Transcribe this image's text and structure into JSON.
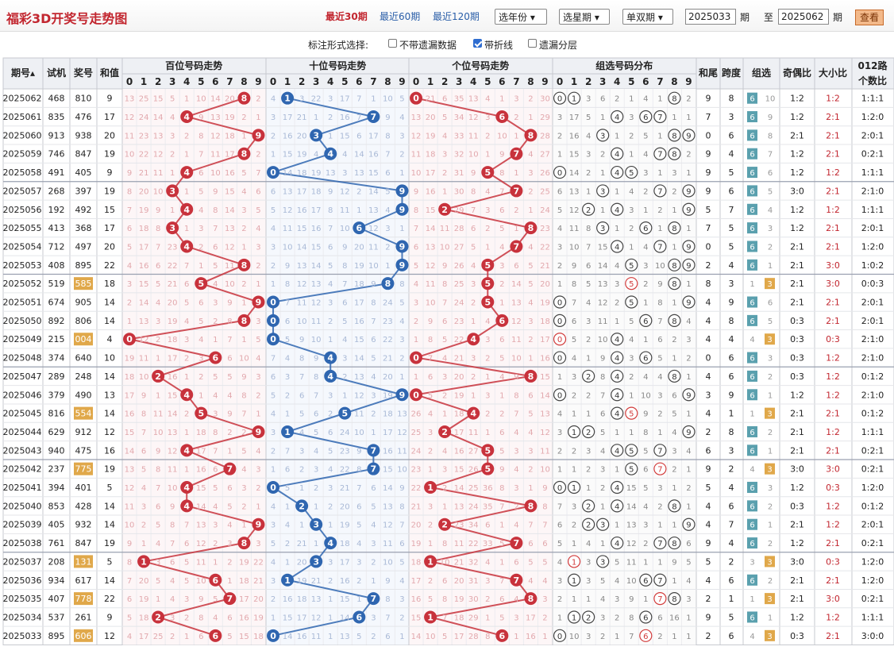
{
  "header": {
    "title": "福彩3D开奖号走势图",
    "recent30": "最近30期",
    "recent60": "最近60期",
    "recent120": "最近120期",
    "year_select": "选年份",
    "star_select": "选星期",
    "parity_select": "单双期",
    "from_value": "2025033",
    "period_label": "期",
    "to_label": "至",
    "to_value": "2025062",
    "period_label2": "期",
    "query": "查看"
  },
  "options": {
    "label": "标注形式选择:",
    "opt1": "不带遗漏数据",
    "opt2": "带折线",
    "opt3": "遗漏分层"
  },
  "columns": {
    "issue": "期号",
    "test": "试机",
    "award": "奖号",
    "sum": "和值",
    "hundreds": "百位号码走势",
    "tens": "十位号码走势",
    "units": "个位号码走势",
    "group": "组选号码分布",
    "sumtail": "和尾",
    "span": "跨度",
    "grouptype": "组选",
    "oddeven": "奇偶比",
    "bigsmall": "大小比",
    "road012a": "012路",
    "road012b": "个数比"
  },
  "colors": {
    "hundreds": "#c8323c",
    "tens": "#2f66b0",
    "units": "#c8323c",
    "accent": "#c2262f",
    "g6": "#5aa0ae",
    "g3": "#e0a84a"
  },
  "rows": [
    {
      "i": "2025062",
      "t": "468",
      "a": "810",
      "s": "9",
      "tail": "9",
      "span": "8",
      "g": "6",
      "gm": "10",
      "oe": "1:2",
      "bs": "1:2",
      "r": "1:1:1",
      "hm": "13 25 15 5 1 10 14 20 8 2",
      "tm": "4 1 3 22 3 17 7 1 10 5",
      "um": "0 21 6 35 13 4 1 3 2 30",
      "gp": "0 1 3 6 2 1 4 1 8 2"
    },
    {
      "i": "2025061",
      "t": "835",
      "a": "476",
      "s": "17",
      "tail": "7",
      "span": "3",
      "g": "6",
      "gm": "9",
      "oe": "1:2",
      "bs": "2:1",
      "r": "1:2:0",
      "hm": "12 24 14 4 4 9 13 19 2 1",
      "tm": "3 17 21 1 2 16 7 1 9 4",
      "um": "13 20 5 34 12 3 6 2 1 29",
      "gp": "3 17 5 1 4 3 6 7 1 1"
    },
    {
      "i": "2025060",
      "t": "913",
      "a": "938",
      "s": "20",
      "tail": "0",
      "span": "6",
      "g": "6",
      "gm": "8",
      "oe": "2:1",
      "bs": "2:1",
      "r": "2:0:1",
      "hm": "11 23 13 3 2 8 12 18 1 9",
      "tm": "2 16 20 3 1 15 6 17 8 3",
      "um": "12 19 4 33 11 2 10 1 8 28",
      "gp": "2 16 4 3 1 2 5 1 8 9"
    },
    {
      "i": "2025059",
      "t": "746",
      "a": "847",
      "s": "19",
      "tail": "9",
      "span": "4",
      "g": "6",
      "gm": "7",
      "oe": "1:2",
      "bs": "2:1",
      "r": "0:2:1",
      "hm": "10 22 12 2 1 7 11 17 8 2",
      "tm": "1 15 19 4 14 4 14 16 7 2",
      "um": "11 18 3 32 10 1 9 7 4 27",
      "gp": "1 15 3 2 4 1 4 7 8 2"
    },
    {
      "i": "2025058",
      "t": "491",
      "a": "405",
      "s": "9",
      "tail": "9",
      "span": "5",
      "g": "6",
      "gm": "6",
      "oe": "1:2",
      "bs": "1:2",
      "r": "1:1:1",
      "hm": "9 21 11 1 4 6 10 16 5 7",
      "tm": "0 14 18 19 13 3 13 15 6 1",
      "um": "10 17 2 31 9 5 8 1 3 26",
      "gp": "0 14 2 1 4 5 3 1 3 1"
    },
    {
      "i": "2025057",
      "t": "268",
      "a": "397",
      "s": "19",
      "tail": "9",
      "span": "6",
      "g": "6",
      "gm": "5",
      "oe": "3:0",
      "bs": "2:1",
      "r": "2:1:0",
      "hm": "8 20 10 3 1 5 9 15 4 6",
      "tm": "6 13 17 18 9 12 2 14 5 9",
      "um": "9 16 1 30 8 4 7 7 2 25",
      "gp": "6 13 1 3 1 4 2 7 2 9"
    },
    {
      "i": "2025056",
      "t": "192",
      "a": "492",
      "s": "15",
      "tail": "5",
      "span": "7",
      "g": "6",
      "gm": "4",
      "oe": "1:2",
      "bs": "1:2",
      "r": "1:1:1",
      "hm": "7 19 9 1 4 4 8 14 3 5",
      "tm": "5 12 16 17 8 11 1 13 4 9",
      "um": "8 15 2 29 7 3 6 2 1 24",
      "gp": "5 12 2 1 4 3 1 2 1 9"
    },
    {
      "i": "2025055",
      "t": "413",
      "a": "368",
      "s": "17",
      "tail": "7",
      "span": "5",
      "g": "6",
      "gm": "3",
      "oe": "1:2",
      "bs": "2:1",
      "r": "2:0:1",
      "hm": "6 18 8 3 1 3 7 13 2 4",
      "tm": "4 11 15 16 7 10 6 12 3 1",
      "um": "7 14 11 28 6 2 5 1 8 23",
      "gp": "4 11 8 3 1 2 6 1 8 1"
    },
    {
      "i": "2025054",
      "t": "712",
      "a": "497",
      "s": "20",
      "tail": "0",
      "span": "5",
      "g": "6",
      "gm": "2",
      "oe": "2:1",
      "bs": "2:1",
      "r": "1:2:0",
      "hm": "5 17 7 23 4 2 6 12 1 3",
      "tm": "3 10 14 15 6 9 20 11 2 9",
      "um": "6 13 10 27 5 1 4 7 4 22",
      "gp": "3 10 7 15 4 1 4 7 1 9"
    },
    {
      "i": "2025053",
      "t": "408",
      "a": "895",
      "s": "22",
      "tail": "2",
      "span": "4",
      "g": "6",
      "gm": "1",
      "oe": "2:1",
      "bs": "3:0",
      "r": "1:0:2",
      "hm": "4 16 6 22 7 1 5 11 8 2",
      "tm": "2 9 13 14 5 8 19 10 1 9",
      "um": "5 12 9 26 4 5 3 6 5 21",
      "gp": "2 9 6 14 4 5 3 10 8 9"
    },
    {
      "i": "2025052",
      "t": "519",
      "a": "585",
      "s": "18",
      "tail": "8",
      "span": "3",
      "g": "3",
      "gm": "1",
      "oe": "2:1",
      "bs": "3:0",
      "r": "0:0:3",
      "hm": "3 15 5 21 6 5 4 10 2 1",
      "tm": "1 8 12 13 4 7 18 9 8 8",
      "um": "4 11 8 25 3 5 2 14 5 20",
      "gp": "1 8 5 13 3 5 2 9 8 1"
    },
    {
      "i": "2025051",
      "t": "674",
      "a": "905",
      "s": "14",
      "tail": "4",
      "span": "9",
      "g": "6",
      "gm": "6",
      "oe": "2:1",
      "bs": "2:1",
      "r": "2:0:1",
      "hm": "2 14 4 20 5 6 3 9 1 9",
      "tm": "0 7 11 12 3 6 17 8 24 5",
      "um": "3 10 7 24 2 5 1 13 4 19",
      "gp": "0 7 4 12 2 5 1 8 1 9"
    },
    {
      "i": "2025050",
      "t": "892",
      "a": "806",
      "s": "14",
      "tail": "4",
      "span": "8",
      "g": "6",
      "gm": "5",
      "oe": "0:3",
      "bs": "2:1",
      "r": "2:0:1",
      "hm": "1 13 3 19 4 5 2 8 8 3",
      "tm": "0 6 10 11 2 5 16 7 23 4",
      "um": "2 9 6 23 1 4 6 12 3 18",
      "gp": "0 6 3 11 1 5 6 7 8 4"
    },
    {
      "i": "2025049",
      "t": "215",
      "a": "004",
      "s": "4",
      "tail": "4",
      "span": "4",
      "g": "3",
      "gm": "4",
      "oe": "0:3",
      "bs": "0:3",
      "r": "2:1:0",
      "hm": "0 12 2 18 3 4 1 7 1 5",
      "tm": "0 5 9 10 1 4 15 6 22 3",
      "um": "1 8 5 22 4 3 6 11 2 17",
      "gp": "0 5 2 10 4 4 1 6 2 3"
    },
    {
      "i": "2025048",
      "t": "374",
      "a": "640",
      "s": "10",
      "tail": "0",
      "span": "6",
      "g": "6",
      "gm": "3",
      "oe": "0:3",
      "bs": "1:2",
      "r": "2:1:0",
      "hm": "19 11 1 17 2 3 6 6 10 4",
      "tm": "7 4 8 9 4 3 14 5 21 2",
      "um": "0 7 4 21 3 2 5 10 1 16",
      "gp": "0 4 1 9 4 3 6 5 1 2"
    },
    {
      "i": "2025047",
      "t": "289",
      "a": "248",
      "s": "14",
      "tail": "4",
      "span": "6",
      "g": "6",
      "gm": "2",
      "oe": "0:3",
      "bs": "1:2",
      "r": "0:1:2",
      "hm": "18 10 2 16 1 2 5 5 9 3",
      "tm": "6 3 7 8 4 2 13 4 20 1",
      "um": "1 6 3 20 2 1 4 9 8 15",
      "gp": "1 3 2 8 4 2 4 4 8 1"
    },
    {
      "i": "2025046",
      "t": "379",
      "a": "490",
      "s": "13",
      "tail": "3",
      "span": "9",
      "g": "6",
      "gm": "1",
      "oe": "1:2",
      "bs": "1:2",
      "r": "2:1:0",
      "hm": "17 9 1 15 4 1 4 4 8 2",
      "tm": "5 2 6 7 3 1 12 3 19 9",
      "um": "0 5 2 19 1 3 1 8 6 14",
      "gp": "0 2 2 7 4 1 10 3 6 9"
    },
    {
      "i": "2025045",
      "t": "816",
      "a": "554",
      "s": "14",
      "tail": "4",
      "span": "1",
      "g": "3",
      "gm": "1",
      "oe": "2:1",
      "bs": "2:1",
      "r": "0:1:2",
      "hm": "16 8 11 14 2 5 3 9 7 1",
      "tm": "4 1 5 6 2 5 11 2 18 13",
      "um": "26 4 1 18 4 2 2 7 5 13",
      "gp": "4 1 1 6 4 5 9 2 5 1"
    },
    {
      "i": "2025044",
      "t": "629",
      "a": "912",
      "s": "12",
      "tail": "2",
      "span": "8",
      "g": "6",
      "gm": "2",
      "oe": "2:1",
      "bs": "1:2",
      "r": "1:1:1",
      "hm": "15 7 10 13 1 18 8 2 2 9",
      "tm": "3 1 4 5 6 24 10 1 17 12",
      "um": "25 3 2 17 11 1 6 4 4 12",
      "gp": "3 1 2 5 1 1 8 1 4 9"
    },
    {
      "i": "2025043",
      "t": "940",
      "a": "475",
      "s": "16",
      "tail": "6",
      "span": "3",
      "g": "6",
      "gm": "1",
      "oe": "2:1",
      "bs": "2:1",
      "r": "0:2:1",
      "hm": "14 6 9 12 4 17 7 1 5 4",
      "tm": "2 7 3 4 5 23 9 7 16 11",
      "um": "24 2 4 16 27 5 5 3 3 11",
      "gp": "2 2 3 4 4 5 5 7 3 4"
    },
    {
      "i": "2025042",
      "t": "237",
      "a": "775",
      "s": "19",
      "tail": "9",
      "span": "2",
      "g": "3",
      "gm": "4",
      "oe": "3:0",
      "bs": "3:0",
      "r": "0:2:1",
      "hm": "13 5 8 11 1 16 6 7 4 3",
      "tm": "1 6 2 3 4 22 8 7 15 10",
      "um": "23 1 3 15 26 5 9 4 2 10",
      "gp": "1 1 2 3 1 5 6 7 2 1"
    },
    {
      "i": "2025041",
      "t": "394",
      "a": "401",
      "s": "5",
      "tail": "5",
      "span": "4",
      "g": "6",
      "gm": "3",
      "oe": "1:2",
      "bs": "0:3",
      "r": "1:2:0",
      "hm": "12 4 7 10 4 15 5 6 3 2",
      "tm": "0 5 1 2 3 21 7 6 14 9",
      "um": "22 1 2 14 25 36 8 3 1 9",
      "gp": "0 1 1 2 4 15 5 3 1 2"
    },
    {
      "i": "2025040",
      "t": "853",
      "a": "428",
      "s": "14",
      "tail": "4",
      "span": "6",
      "g": "6",
      "gm": "2",
      "oe": "0:3",
      "bs": "1:2",
      "r": "0:1:2",
      "hm": "11 3 6 9 4 14 4 5 2 1",
      "tm": "4 1 2 1 2 20 6 5 13 8",
      "um": "21 3 1 13 24 35 7 2 8 8",
      "gp": "7 3 2 1 4 14 4 2 8 1"
    },
    {
      "i": "2025039",
      "t": "405",
      "a": "932",
      "s": "14",
      "tail": "4",
      "span": "7",
      "g": "6",
      "gm": "1",
      "oe": "2:1",
      "bs": "1:2",
      "r": "2:0:1",
      "hm": "10 2 5 8 7 13 3 4 1 9",
      "tm": "3 4 1 3 1 19 5 4 12 7",
      "um": "20 2 2 23 34 6 1 4 7 7",
      "gp": "6 2 2 3 1 13 3 1 1 6"
    },
    {
      "i": "2025038",
      "t": "761",
      "a": "847",
      "s": "19",
      "tail": "9",
      "span": "4",
      "g": "6",
      "gm": "2",
      "oe": "1:2",
      "bs": "2:1",
      "r": "0:2:1",
      "hm": "9 1 4 7 6 12 2 3 8 3",
      "tm": "5 2 21 1 4 18 4 3 11 6",
      "um": "19 1 8 11 22 33 5 7 6 6",
      "gp": "5 1 4 1 4 12 2 7 8 6"
    },
    {
      "i": "2025037",
      "t": "208",
      "a": "131",
      "s": "5",
      "tail": "5",
      "span": "2",
      "g": "3",
      "gm": "3",
      "oe": "3:0",
      "bs": "0:3",
      "r": "1:2:0",
      "hm": "8 1 3 6 5 11 1 2 19 22",
      "tm": "4 1 20 3 3 17 3 2 10 5",
      "um": "18 1 10 21 32 4 1 6 5 5",
      "gp": "4 1 3 3 5 11 1 1 9 5"
    },
    {
      "i": "2025036",
      "t": "934",
      "a": "617",
      "s": "14",
      "tail": "4",
      "span": "6",
      "g": "6",
      "gm": "2",
      "oe": "2:1",
      "bs": "2:1",
      "r": "1:2:0",
      "hm": "7 20 5 4 5 10 6 1 18 21",
      "tm": "3 1 19 21 2 16 2 1 9 4",
      "um": "17 2 6 20 31 3 7 5 4 4",
      "gp": "3 1 3 5 4 10 6 7 1 4"
    },
    {
      "i": "2025035",
      "t": "407",
      "a": "778",
      "s": "22",
      "tail": "2",
      "span": "1",
      "g": "3",
      "gm": "1",
      "oe": "2:1",
      "bs": "3:0",
      "r": "0:2:1",
      "hm": "6 19 1 4 3 9 5 7 17 20",
      "tm": "2 16 18 13 1 15 1 7 8 3",
      "um": "16 5 8 19 30 2 6 4 8 3",
      "gp": "2 1 1 4 3 9 1 7 8 3"
    },
    {
      "i": "2025034",
      "t": "537",
      "a": "261",
      "s": "9",
      "tail": "9",
      "span": "5",
      "g": "6",
      "gm": "1",
      "oe": "1:2",
      "bs": "1:2",
      "r": "1:1:1",
      "hm": "5 18 2 3 2 8 4 6 16 19",
      "tm": "1 15 17 12 1 14 6 3 7 2",
      "um": "15 1 7 18 29 1 5 3 17 2",
      "gp": "1 1 2 3 2 8 4 6 16 1"
    },
    {
      "i": "2025033",
      "t": "895",
      "a": "606",
      "s": "12",
      "tail": "2",
      "span": "6",
      "g": "3",
      "gm": "4",
      "oe": "0:3",
      "bs": "2:1",
      "r": "3:0:0",
      "hm": "4 17 25 2 1 6 3 5 15 18",
      "tm": "0 14 16 11 1 13 5 2 6 1",
      "um": "14 10 5 17 28 8 6 1 16 1",
      "gp": "0 10 3 2 1 7 6 2 1 1"
    }
  ]
}
